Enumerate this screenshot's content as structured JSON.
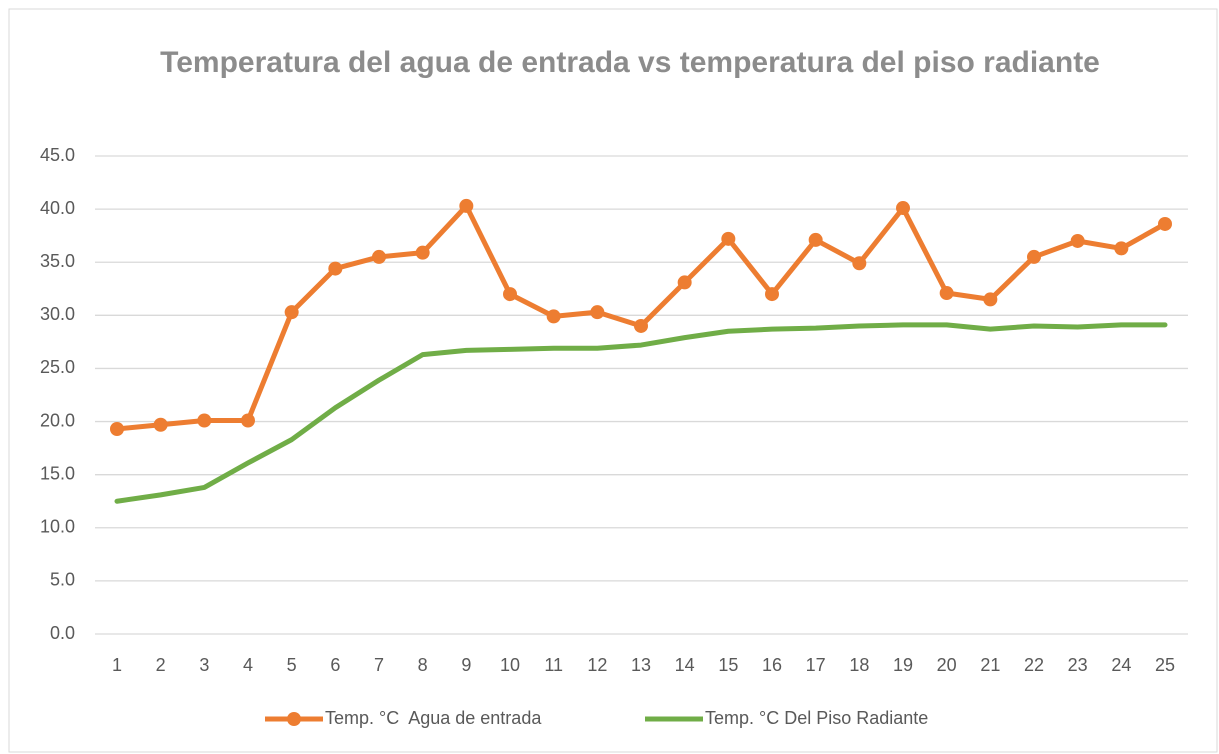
{
  "chart_data": {
    "type": "line",
    "title": "Temperatura del agua de entrada vs temperatura del piso radiante",
    "categories": [
      "1",
      "2",
      "3",
      "4",
      "5",
      "6",
      "7",
      "8",
      "9",
      "10",
      "11",
      "12",
      "13",
      "14",
      "15",
      "16",
      "17",
      "18",
      "19",
      "20",
      "21",
      "22",
      "23",
      "24",
      "25"
    ],
    "series": [
      {
        "name": "Temp. °C  Agua de entrada",
        "color": "#ed7d31",
        "markers": true,
        "values": [
          19.3,
          19.7,
          20.1,
          20.1,
          30.3,
          34.4,
          35.5,
          35.9,
          40.3,
          32.0,
          29.9,
          30.3,
          29.0,
          33.1,
          37.2,
          32.0,
          37.1,
          34.9,
          40.1,
          32.1,
          31.5,
          35.5,
          37.0,
          36.3,
          38.6
        ]
      },
      {
        "name": "Temp. °C Del Piso Radiante",
        "color": "#70ad47",
        "markers": false,
        "values": [
          12.5,
          13.1,
          13.8,
          16.1,
          18.3,
          21.3,
          23.9,
          26.3,
          26.7,
          26.8,
          26.9,
          26.9,
          27.2,
          27.9,
          28.5,
          28.7,
          28.8,
          29.0,
          29.1,
          29.1,
          28.7,
          29.0,
          28.9,
          29.1,
          29.1
        ]
      }
    ],
    "ylim": [
      0,
      45
    ],
    "yticks": [
      {
        "value": 0,
        "label": "0.0"
      },
      {
        "value": 5,
        "label": "5.0"
      },
      {
        "value": 10,
        "label": "10.0"
      },
      {
        "value": 15,
        "label": "15.0"
      },
      {
        "value": 20,
        "label": "20.0"
      },
      {
        "value": 25,
        "label": "25.0"
      },
      {
        "value": 30,
        "label": "30.0"
      },
      {
        "value": 35,
        "label": "35.0"
      },
      {
        "value": 40,
        "label": "40.0"
      },
      {
        "value": 45,
        "label": "45.0"
      }
    ],
    "grid": true,
    "legend": "bottom"
  }
}
